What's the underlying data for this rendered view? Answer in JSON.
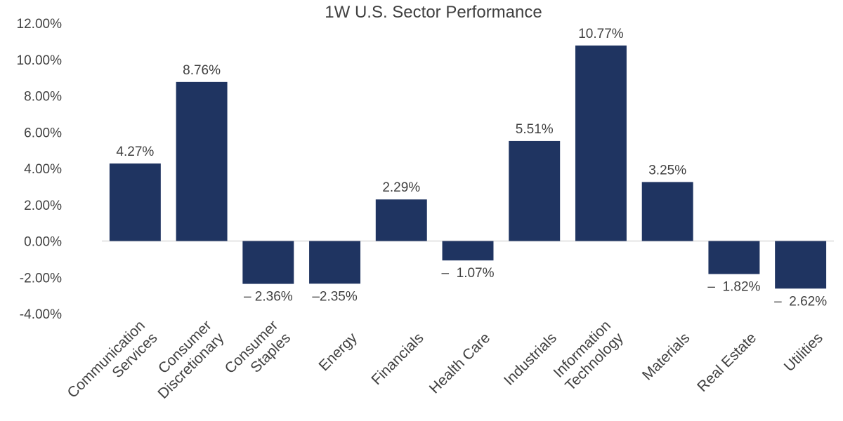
{
  "chart_data": {
    "type": "bar",
    "title": "1W U.S. Sector Performance",
    "xlabel": "",
    "ylabel": "",
    "ylim": [
      -4,
      12
    ],
    "y_tick_step": 2,
    "y_tick_labels": [
      "12.00%",
      "10.00%",
      "8.00%",
      "6.00%",
      "4.00%",
      "2.00%",
      "0.00%",
      "-2.00%",
      "-4.00%"
    ],
    "grid": false,
    "categories": [
      [
        "Communication",
        "Services"
      ],
      [
        "Consumer",
        "Discretionary"
      ],
      [
        "Consumer",
        "Staples"
      ],
      [
        "Energy"
      ],
      [
        "Financials"
      ],
      [
        "Health Care"
      ],
      [
        "Industrials"
      ],
      [
        "Information",
        "Technology"
      ],
      [
        "Materials"
      ],
      [
        "Real Estate"
      ],
      [
        "Utilities"
      ]
    ],
    "values": [
      4.27,
      8.76,
      -2.36,
      -2.35,
      2.29,
      -1.07,
      5.51,
      10.77,
      3.25,
      -1.82,
      -2.62
    ],
    "data_labels": [
      "4.27%",
      "8.76%",
      "– 2.36%",
      "–2.35%",
      "2.29%",
      "–  1.07%",
      "5.51%",
      "10.77%",
      "3.25%",
      "–  1.82%",
      "–  2.62%"
    ],
    "bar_color": "#1f3461",
    "axis_color": "#d9d9d9"
  }
}
